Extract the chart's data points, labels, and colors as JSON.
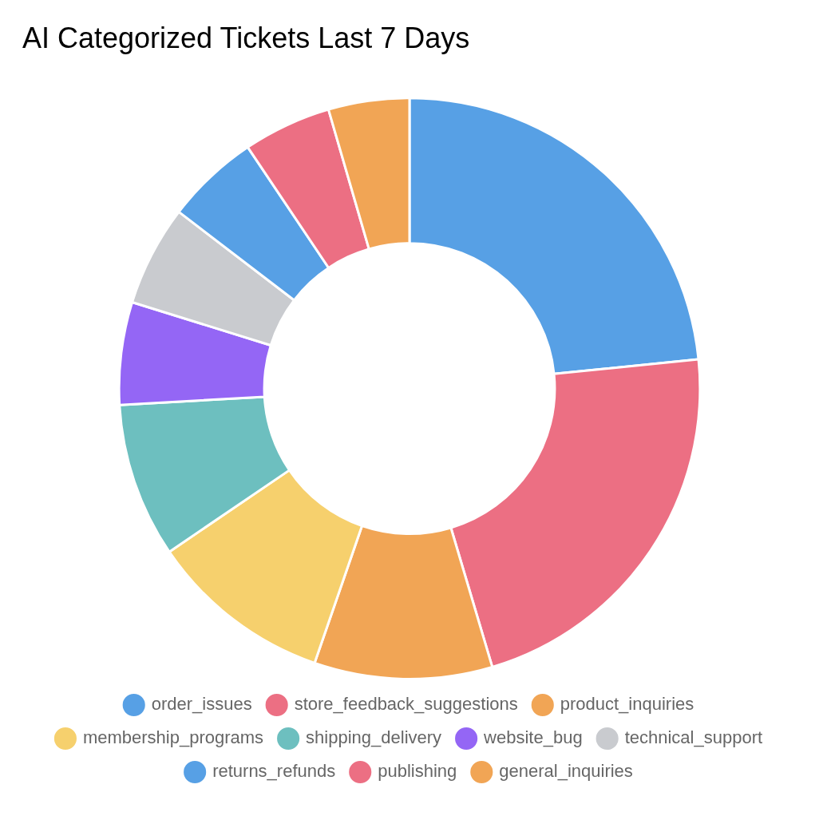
{
  "chart_data": {
    "type": "donut",
    "title": "AI Categorized Tickets Last 7 Days",
    "categories": [
      "order_issues",
      "store_feedback_suggestions",
      "product_inquiries",
      "membership_programs",
      "shipping_delivery",
      "website_bug",
      "technical_support",
      "returns_refunds",
      "publishing",
      "general_inquiries"
    ],
    "values": [
      23.4,
      22.0,
      9.9,
      10.2,
      8.6,
      5.7,
      5.6,
      5.2,
      4.9,
      4.5
    ],
    "colors": [
      "#57a0e5",
      "#ec6f83",
      "#f1a555",
      "#f6d06d",
      "#6dbfbf",
      "#9466f5",
      "#c9cbcf",
      "#57a0e5",
      "#ec6f83",
      "#f1a555"
    ],
    "legend": "bottom"
  }
}
